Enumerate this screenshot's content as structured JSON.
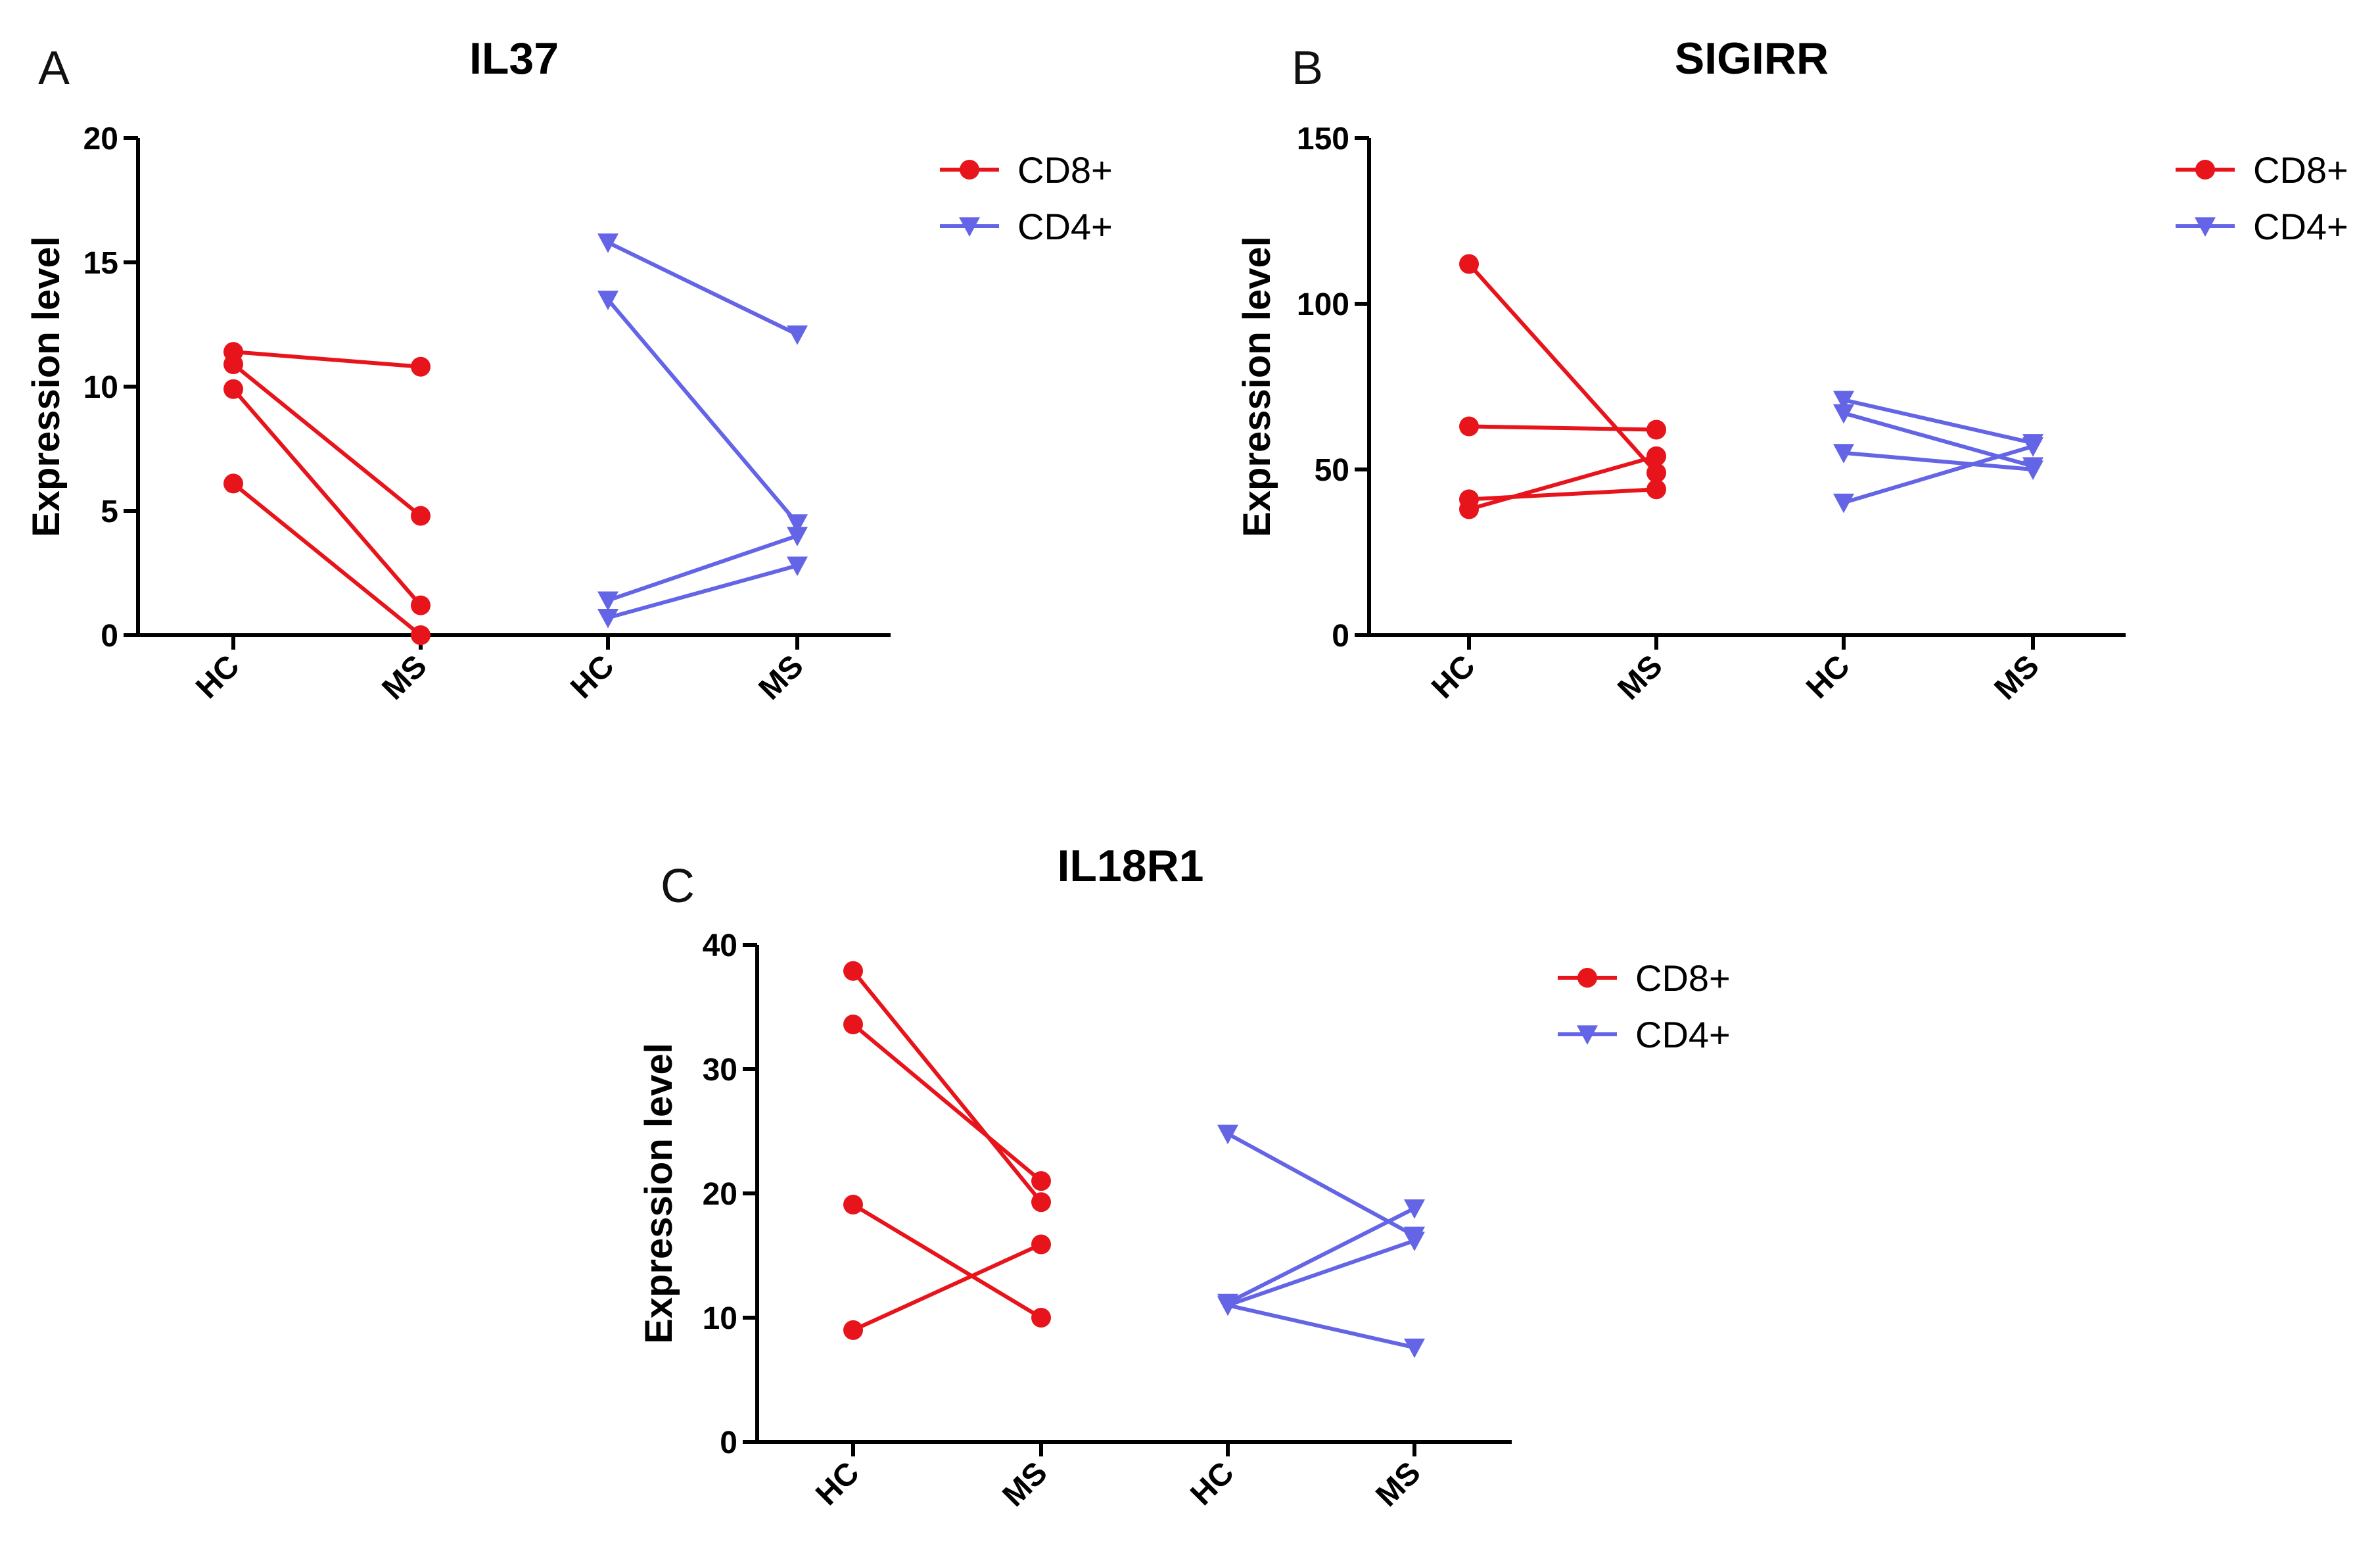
{
  "figure": {
    "colors": {
      "CD8+": "#e8141c",
      "CD4+": "#6464e6"
    }
  },
  "chart_data": [
    {
      "panel": "A",
      "type": "line",
      "title": "IL37",
      "xlabel": "",
      "ylabel": "Expression level",
      "ylim": [
        0,
        20
      ],
      "yticks": [
        0,
        5,
        10,
        15,
        20
      ],
      "categories": [
        "HC",
        "MS",
        "HC",
        "MS"
      ],
      "legend": [
        "CD8+",
        "CD4+"
      ],
      "legend_position": "top-right",
      "series": [
        {
          "name": "CD8+",
          "marker": "circle",
          "pairs": [
            [
              11.4,
              10.8
            ],
            [
              10.9,
              4.8
            ],
            [
              9.9,
              1.2
            ],
            [
              6.1,
              0.0
            ]
          ]
        },
        {
          "name": "CD4+",
          "marker": "triangle-down",
          "pairs": [
            [
              15.8,
              12.1
            ],
            [
              13.5,
              4.5
            ],
            [
              1.4,
              4.0
            ],
            [
              0.7,
              2.8
            ]
          ]
        }
      ]
    },
    {
      "panel": "B",
      "type": "line",
      "title": "SIGIRR",
      "xlabel": "",
      "ylabel": "Expression level",
      "ylim": [
        0,
        150
      ],
      "yticks": [
        0,
        50,
        100,
        150
      ],
      "categories": [
        "HC",
        "MS",
        "HC",
        "MS"
      ],
      "legend": [
        "CD8+",
        "CD4+"
      ],
      "legend_position": "top-right",
      "series": [
        {
          "name": "CD8+",
          "marker": "circle",
          "pairs": [
            [
              112,
              49
            ],
            [
              63,
              62
            ],
            [
              41,
              44
            ],
            [
              38,
              54
            ]
          ]
        },
        {
          "name": "CD4+",
          "marker": "triangle-down",
          "pairs": [
            [
              71,
              58
            ],
            [
              67,
              51
            ],
            [
              55,
              50
            ],
            [
              40,
              57
            ]
          ]
        }
      ]
    },
    {
      "panel": "C",
      "type": "line",
      "title": "IL18R1",
      "xlabel": "",
      "ylabel": "Expression level",
      "ylim": [
        0,
        40
      ],
      "yticks": [
        0,
        10,
        20,
        30,
        40
      ],
      "categories": [
        "HC",
        "MS",
        "HC",
        "MS"
      ],
      "legend": [
        "CD8+",
        "CD4+"
      ],
      "legend_position": "top-right",
      "series": [
        {
          "name": "CD8+",
          "marker": "circle",
          "pairs": [
            [
              37.9,
              19.3
            ],
            [
              33.6,
              21.0
            ],
            [
              19.1,
              10.0
            ],
            [
              9.0,
              15.9
            ]
          ]
        },
        {
          "name": "CD4+",
          "marker": "triangle-down",
          "pairs": [
            [
              24.8,
              16.6
            ],
            [
              11.2,
              18.8
            ],
            [
              11.0,
              16.2
            ],
            [
              11.0,
              7.6
            ]
          ]
        }
      ]
    }
  ]
}
